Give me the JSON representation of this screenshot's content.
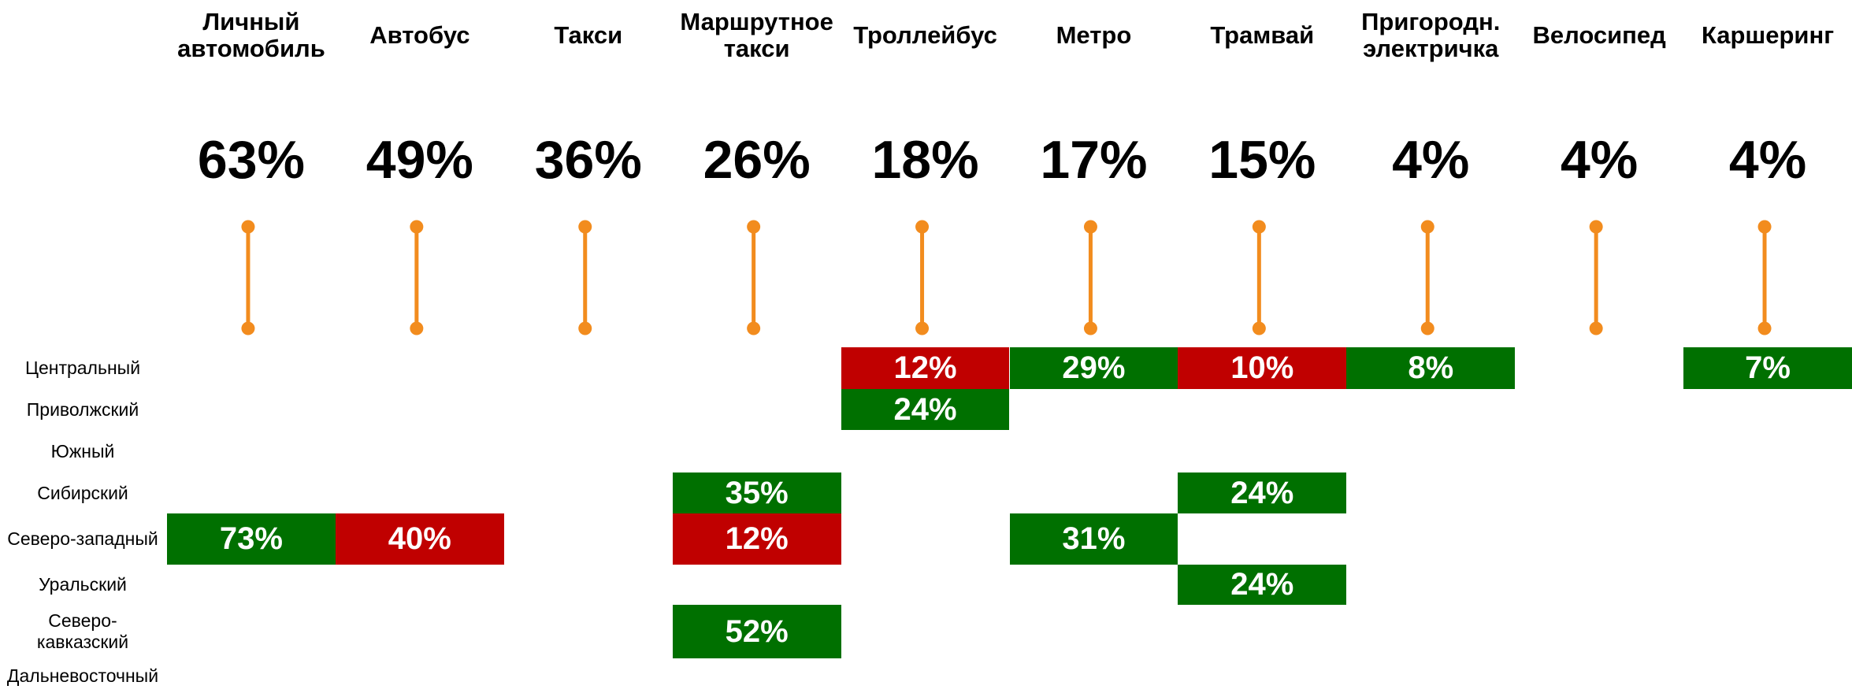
{
  "columns": [
    {
      "label": "Личный\nавтомобиль",
      "value": "63%"
    },
    {
      "label": "Автобус",
      "value": "49%"
    },
    {
      "label": "Такси",
      "value": "36%"
    },
    {
      "label": "Маршрутное\nтакси",
      "value": "26%"
    },
    {
      "label": "Троллейбус",
      "value": "18%"
    },
    {
      "label": "Метро",
      "value": "17%"
    },
    {
      "label": "Трамвай",
      "value": "15%"
    },
    {
      "label": "Пригородн.\nэлектричка",
      "value": "4%"
    },
    {
      "label": "Велосипед",
      "value": "4%"
    },
    {
      "label": "Каршеринг",
      "value": "4%"
    }
  ],
  "rows": [
    {
      "name": "Центральный",
      "cells": [
        null,
        null,
        null,
        null,
        {
          "text": "12%",
          "color": "#c00000"
        },
        {
          "text": "29%",
          "color": "#007000"
        },
        {
          "text": "10%",
          "color": "#c00000"
        },
        {
          "text": "8%",
          "color": "#007000"
        },
        null,
        {
          "text": "7%",
          "color": "#007000"
        }
      ]
    },
    {
      "name": "Приволжский",
      "cells": [
        null,
        null,
        null,
        null,
        {
          "text": "24%",
          "color": "#007000"
        },
        null,
        null,
        null,
        null,
        null
      ]
    },
    {
      "name": "Южный",
      "cells": [
        null,
        null,
        null,
        null,
        null,
        null,
        null,
        null,
        null,
        null
      ]
    },
    {
      "name": "Сибирский",
      "cells": [
        null,
        null,
        null,
        {
          "text": "35%",
          "color": "#007000"
        },
        null,
        null,
        {
          "text": "24%",
          "color": "#007000"
        },
        null,
        null,
        null
      ]
    },
    {
      "name": "Северо-западный",
      "cells": [
        {
          "text": "73%",
          "color": "#007000"
        },
        {
          "text": "40%",
          "color": "#c00000"
        },
        null,
        {
          "text": "12%",
          "color": "#c00000"
        },
        null,
        {
          "text": "31%",
          "color": "#007000"
        },
        null,
        null,
        null,
        null
      ]
    },
    {
      "name": "Уральский",
      "cells": [
        null,
        null,
        null,
        null,
        null,
        null,
        {
          "text": "24%",
          "color": "#007000"
        },
        null,
        null,
        null
      ]
    },
    {
      "name": "Северо-\nкавказский",
      "cells": [
        null,
        null,
        null,
        {
          "text": "52%",
          "color": "#007000"
        },
        null,
        null,
        null,
        null,
        null,
        null
      ]
    },
    {
      "name": "Дальневосточный",
      "cells": [
        null,
        null,
        null,
        null,
        null,
        null,
        null,
        null,
        null,
        null
      ]
    }
  ]
}
